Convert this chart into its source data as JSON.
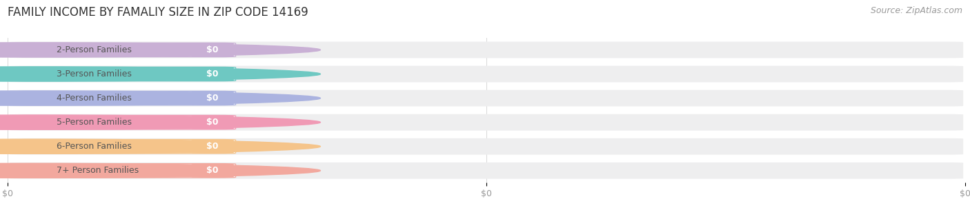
{
  "title": "FAMILY INCOME BY FAMALIY SIZE IN ZIP CODE 14169",
  "source": "Source: ZipAtlas.com",
  "categories": [
    "2-Person Families",
    "3-Person Families",
    "4-Person Families",
    "5-Person Families",
    "6-Person Families",
    "7+ Person Families"
  ],
  "values": [
    0,
    0,
    0,
    0,
    0,
    0
  ],
  "bar_colors": [
    "#c9b0d5",
    "#6ec8c2",
    "#abb3e0",
    "#f09ab5",
    "#f5c48a",
    "#f2a89e"
  ],
  "bg_color": "#ffffff",
  "track_color": "#eeeeef",
  "title_fontsize": 12,
  "source_fontsize": 9,
  "label_fontsize": 9,
  "value_fontsize": 9,
  "tick_fontsize": 9,
  "xlim": [
    0,
    1
  ],
  "bar_height": 0.68
}
